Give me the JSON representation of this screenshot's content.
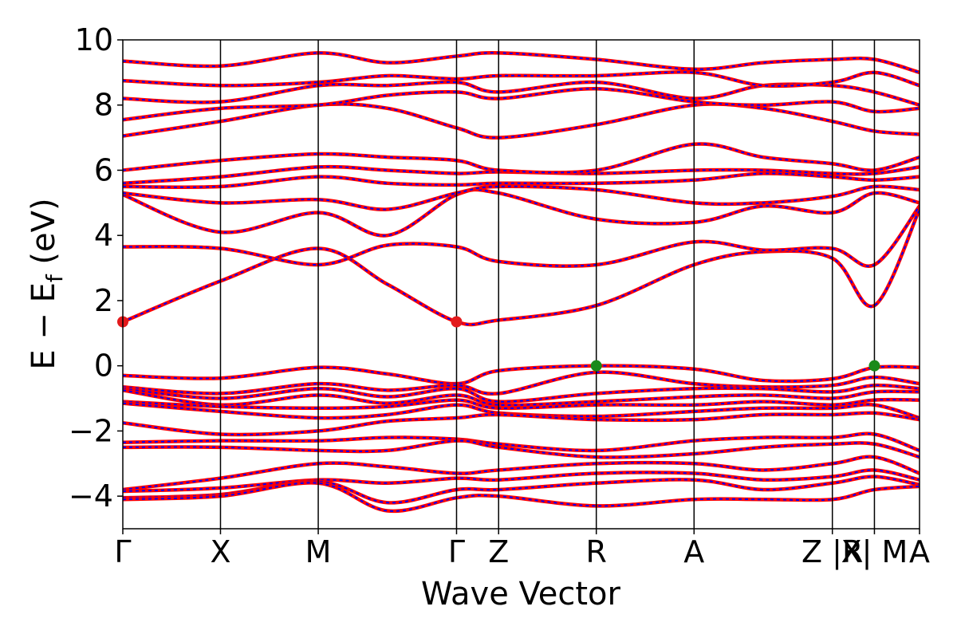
{
  "chart_data": {
    "type": "line",
    "title": "",
    "xlabel": "Wave Vector",
    "ylabel_main": "E − E",
    "ylabel_sub": "f",
    "ylabel_unit": " (eV)",
    "ylim": [
      -5,
      10
    ],
    "yticks": [
      -4,
      -2,
      0,
      2,
      4,
      6,
      8,
      10
    ],
    "ytick_labels": [
      "−4",
      "−2",
      "0",
      "2",
      "4",
      "6",
      "8",
      "10"
    ],
    "xlim": [
      0,
      1
    ],
    "kpoints": [
      {
        "label": "Γ",
        "x": 0.0
      },
      {
        "label": "X",
        "x": 0.1226
      },
      {
        "label": "M",
        "x": 0.2453
      },
      {
        "label": "Γ",
        "x": 0.4189
      },
      {
        "label": "Z",
        "x": 0.4717
      },
      {
        "label": "R",
        "x": 0.5943
      },
      {
        "label": "A",
        "x": 0.717
      },
      {
        "label": "Z |R",
        "x": 0.8906
      },
      {
        "label": "X| M",
        "x": 0.9434
      },
      {
        "label": "A",
        "x": 1.0
      }
    ],
    "special_points": [
      {
        "name": "CBM",
        "x": 0.0,
        "y": 1.35,
        "color": "#e31a1c"
      },
      {
        "name": "CBM",
        "x": 0.4189,
        "y": 1.35,
        "color": "#e31a1c"
      },
      {
        "name": "VBM",
        "x": 0.5943,
        "y": 0.0,
        "color": "#1a8a1a"
      },
      {
        "name": "VBM",
        "x": 0.9434,
        "y": 0.0,
        "color": "#1a8a1a"
      }
    ],
    "colors": {
      "band_line": "#ff0000",
      "band_dash": "#0000ff",
      "kpoint_line": "#000000",
      "frame": "#000000"
    },
    "bands": {
      "valence": [
        [
          -0.3,
          -0.38,
          -0.05,
          -0.25,
          -0.55,
          -0.15,
          0.0,
          -0.1,
          -0.45,
          -0.4,
          -0.05,
          -0.05
        ],
        [
          -0.65,
          -0.85,
          -0.55,
          -0.75,
          -0.6,
          -0.85,
          -0.2,
          -0.55,
          -0.65,
          -0.6,
          -0.35,
          -0.55
        ],
        [
          -0.7,
          -1.0,
          -0.7,
          -0.95,
          -0.7,
          -1.1,
          -0.85,
          -0.7,
          -0.7,
          -0.8,
          -0.6,
          -0.7
        ],
        [
          -0.75,
          -1.2,
          -0.9,
          -1.15,
          -0.9,
          -1.2,
          -1.1,
          -0.95,
          -0.9,
          -1.0,
          -0.8,
          -0.8
        ],
        [
          -1.1,
          -1.25,
          -1.3,
          -1.25,
          -1.05,
          -1.3,
          -1.2,
          -1.2,
          -1.1,
          -1.2,
          -1.05,
          -1.05
        ],
        [
          -1.15,
          -1.4,
          -1.6,
          -1.5,
          -1.2,
          -1.45,
          -1.55,
          -1.4,
          -1.3,
          -1.3,
          -1.2,
          -1.6
        ],
        [
          -1.75,
          -2.1,
          -2.0,
          -1.7,
          -1.6,
          -1.5,
          -1.65,
          -1.65,
          -1.5,
          -1.5,
          -1.45,
          -1.65
        ],
        [
          -2.35,
          -2.3,
          -2.3,
          -2.2,
          -2.25,
          -2.4,
          -2.6,
          -2.3,
          -2.2,
          -2.2,
          -2.1,
          -2.6
        ],
        [
          -2.5,
          -2.5,
          -2.6,
          -2.6,
          -2.3,
          -2.5,
          -2.8,
          -2.7,
          -2.5,
          -2.4,
          -2.4,
          -2.8
        ],
        [
          -3.8,
          -3.45,
          -3.0,
          -3.1,
          -3.3,
          -3.2,
          -3.0,
          -3.0,
          -3.2,
          -3.0,
          -2.8,
          -3.3
        ],
        [
          -3.85,
          -3.75,
          -3.5,
          -3.6,
          -3.45,
          -3.5,
          -3.3,
          -3.3,
          -3.5,
          -3.4,
          -3.2,
          -3.5
        ],
        [
          -4.05,
          -3.95,
          -3.55,
          -4.2,
          -3.8,
          -3.8,
          -3.6,
          -3.5,
          -3.8,
          -3.6,
          -3.4,
          -3.65
        ],
        [
          -4.1,
          -4.0,
          -3.6,
          -4.45,
          -4.05,
          -4.0,
          -4.3,
          -4.1,
          -4.1,
          -4.1,
          -3.8,
          -3.7
        ]
      ],
      "conduction": [
        [
          1.35,
          2.6,
          3.6,
          2.5,
          1.35,
          1.4,
          1.85,
          3.1,
          3.5,
          3.3,
          1.85,
          4.8
        ],
        [
          3.65,
          3.6,
          3.1,
          3.7,
          3.65,
          3.2,
          3.1,
          3.8,
          3.55,
          3.6,
          3.1,
          4.9
        ],
        [
          5.25,
          4.1,
          4.7,
          4.0,
          5.25,
          5.3,
          4.5,
          4.4,
          4.9,
          4.7,
          5.3,
          5.0
        ],
        [
          5.3,
          5.0,
          5.1,
          4.8,
          5.3,
          5.5,
          5.4,
          5.0,
          5.0,
          5.2,
          5.5,
          5.4
        ],
        [
          5.5,
          5.5,
          5.8,
          5.6,
          5.55,
          5.6,
          5.6,
          5.7,
          5.9,
          5.8,
          5.7,
          5.8
        ],
        [
          5.6,
          5.8,
          6.1,
          6.0,
          5.9,
          5.95,
          5.9,
          6.0,
          6.0,
          5.9,
          5.9,
          6.1
        ],
        [
          6.0,
          6.3,
          6.5,
          6.4,
          6.3,
          6.0,
          6.0,
          6.8,
          6.4,
          6.2,
          6.0,
          6.4
        ],
        [
          7.05,
          7.5,
          8.0,
          7.9,
          7.3,
          7.0,
          7.4,
          8.0,
          7.9,
          7.5,
          7.2,
          7.1
        ],
        [
          7.55,
          7.9,
          8.0,
          8.3,
          8.4,
          8.2,
          8.5,
          8.1,
          8.0,
          8.1,
          7.8,
          7.9
        ],
        [
          8.2,
          8.1,
          8.6,
          8.6,
          8.7,
          8.4,
          8.7,
          8.2,
          8.6,
          8.6,
          8.4,
          8.0
        ],
        [
          8.75,
          8.6,
          8.7,
          8.9,
          8.8,
          8.9,
          8.9,
          9.0,
          8.6,
          8.7,
          9.0,
          8.6
        ],
        [
          9.35,
          9.2,
          9.6,
          9.3,
          9.5,
          9.6,
          9.4,
          9.1,
          9.3,
          9.4,
          9.4,
          9.0
        ]
      ]
    }
  }
}
